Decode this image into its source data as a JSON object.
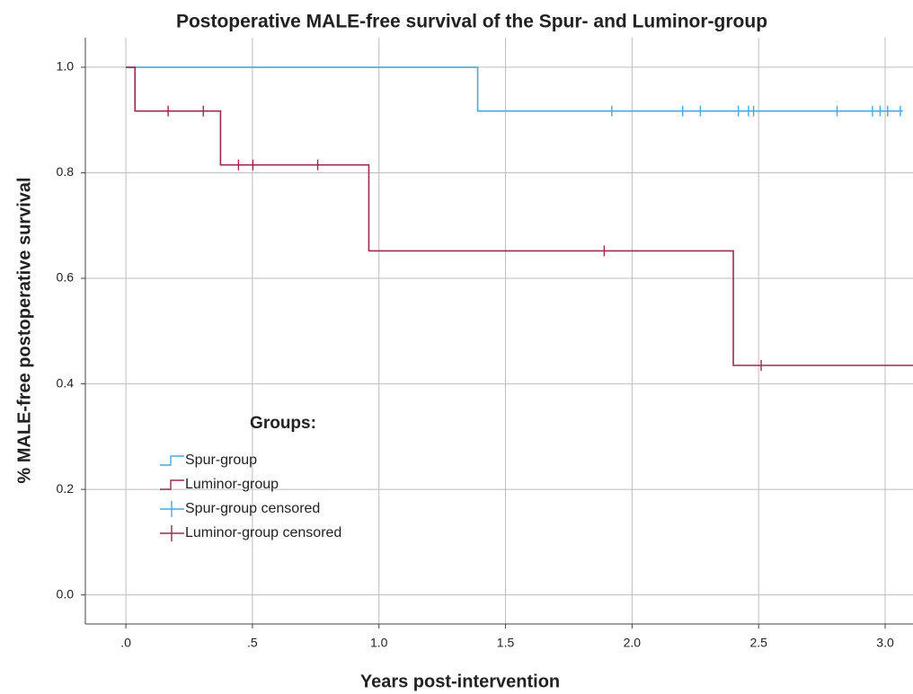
{
  "chart_data": {
    "type": "survival",
    "title": "Postoperative MALE-free survival of the Spur- and Luminor-group",
    "x_label": "Years post-intervention",
    "y_label": "% MALE-free postoperative survival",
    "legend_title": "Groups:",
    "xlim": [
      -0.16,
      3.11
    ],
    "ylim": [
      -0.055,
      1.056
    ],
    "xticks": [
      {
        "value": 0,
        "label": ".0"
      },
      {
        "value": 0.5,
        "label": ".5"
      },
      {
        "value": 1.0,
        "label": "1.0"
      },
      {
        "value": 1.5,
        "label": "1.5"
      },
      {
        "value": 2.0,
        "label": "2.0"
      },
      {
        "value": 2.5,
        "label": "2.5"
      },
      {
        "value": 3.0,
        "label": "3.0"
      }
    ],
    "yticks": [
      {
        "value": 0,
        "label": "0.0"
      },
      0.2,
      0.4,
      0.6,
      0.8,
      {
        "value": 1.0,
        "label": "1.0"
      }
    ],
    "grid": true,
    "series": [
      {
        "name": "Spur-group",
        "type": "step",
        "color": "#4aa8de",
        "x": [
          0,
          1.39,
          1.39,
          3.07
        ],
        "values": [
          1,
          1,
          0.917,
          0.917
        ]
      },
      {
        "name": "Luminor-group",
        "type": "step",
        "color": "#9b2b50",
        "x": [
          0,
          0.036,
          0.036,
          0.374,
          0.374,
          0.96,
          0.96,
          2.4,
          2.4,
          3.11
        ],
        "values": [
          1,
          1,
          0.917,
          0.917,
          0.815,
          0.815,
          0.652,
          0.652,
          0.435,
          0.435
        ]
      },
      {
        "name": "Spur-group censored",
        "type": "censored",
        "color": "#4aa8de",
        "x": [
          1.92,
          2.2,
          2.27,
          2.42,
          2.46,
          2.48,
          2.81,
          2.95,
          2.98,
          3.01,
          3.06
        ],
        "values": [
          0.917,
          0.917,
          0.917,
          0.917,
          0.917,
          0.917,
          0.917,
          0.917,
          0.917,
          0.917,
          0.917
        ]
      },
      {
        "name": "Luminor-group censored",
        "type": "censored",
        "color": "#9b2b50",
        "x": [
          0.167,
          0.306,
          0.445,
          0.502,
          0.758,
          1.89,
          2.51
        ],
        "values": [
          0.917,
          0.917,
          0.815,
          0.815,
          0.815,
          0.652,
          0.435
        ]
      }
    ]
  }
}
